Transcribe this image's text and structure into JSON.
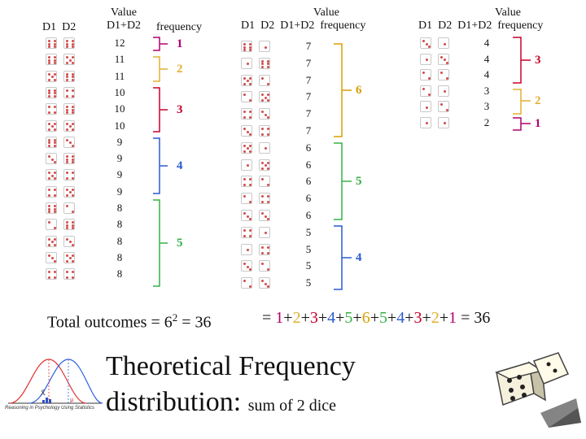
{
  "headers": {
    "d1": "D1",
    "d2": "D2",
    "value": "Value",
    "sum": "D1+D2",
    "frequency": "frequency"
  },
  "col1": {
    "values": [
      "12",
      "11",
      "11",
      "10",
      "10",
      "10",
      "9",
      "9",
      "9",
      "9",
      "8",
      "8",
      "8",
      "8",
      "8"
    ],
    "freqs": [
      "1",
      "2",
      "3",
      "4",
      "5"
    ]
  },
  "col2": {
    "values": [
      "7",
      "7",
      "7",
      "7",
      "7",
      "7",
      "6",
      "6",
      "6",
      "6",
      "6",
      "5",
      "5",
      "5",
      "5"
    ],
    "freqs": [
      "6",
      "5",
      "4"
    ]
  },
  "col3": {
    "values": [
      "4",
      "4",
      "4",
      "3",
      "3",
      "2"
    ],
    "freqs": [
      "3",
      "2",
      "1"
    ]
  },
  "total": {
    "label": "Total outcomes = 6",
    "exp": "2",
    "rest": " = 36",
    "sum_prefix": "= ",
    "terms": [
      "1",
      "2",
      "3",
      "4",
      "5",
      "6",
      "5",
      "4",
      "3",
      "2",
      "1"
    ],
    "sum_suffix": " = 36"
  },
  "title": {
    "line1": "Theoretical Frequency",
    "line2": "distribution:",
    "line2_small": "sum of 2 dice"
  },
  "logo": {
    "caption": "Reasoning in Psychology Using Statistics",
    "xbar": "X̄",
    "mu": "μ"
  },
  "colors": {
    "f1": "#b0006e",
    "f2": "#e0b030",
    "f3": "#c8002a",
    "f4": "#2a5ad0",
    "f5": "#36b046",
    "f6": "#d9a000",
    "pip": "#d24a4a"
  }
}
